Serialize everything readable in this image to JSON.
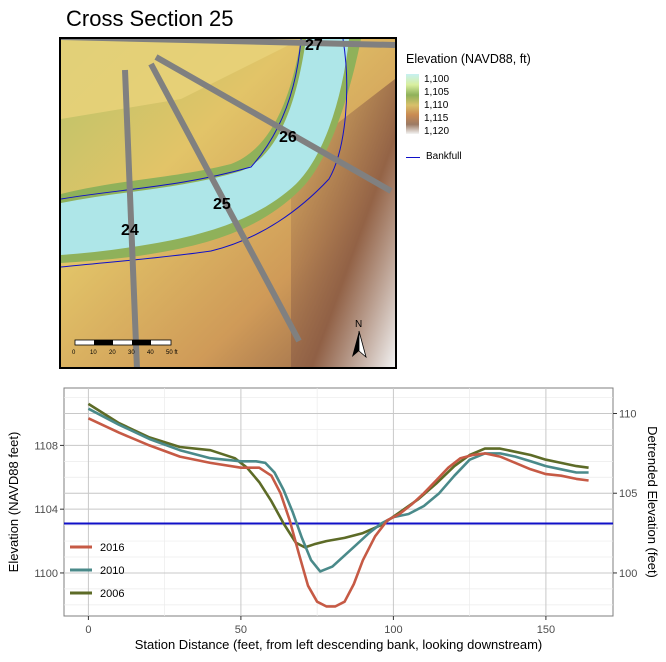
{
  "map": {
    "title": "Cross Section 25",
    "section_labels": [
      "24",
      "25",
      "26",
      "27"
    ],
    "legend_title": "Elevation (NAVD88, ft)",
    "legend_ticks": [
      "1,100",
      "1,105",
      "1,110",
      "1,115",
      "1,120"
    ],
    "bankfull_label": "Bankfull",
    "scale_ticks": [
      "0",
      "10",
      "20",
      "30",
      "40",
      "50 ft"
    ],
    "north_label": "N",
    "colors": {
      "bankfull_line": "#1010c8",
      "section_line": "#808080"
    }
  },
  "chart_data": {
    "type": "line",
    "xlabel": "Station Distance (feet, from left descending bank, looking downstream)",
    "ylabel": "Elevation (NAVD88 feet)",
    "y2label": "Detrended Elevation (feet)",
    "xlim": [
      -8,
      172
    ],
    "ylim": [
      1097.3,
      1111.6
    ],
    "x_ticks": [
      0,
      50,
      100,
      150
    ],
    "y_ticks": [
      1100,
      1104,
      1108
    ],
    "y2_ticks": [
      100,
      105,
      110
    ],
    "y2_offset": 1000,
    "grid": true,
    "legend_position": "bottom-left",
    "bankfull_elevation": 1103.1,
    "series": [
      {
        "name": "2016",
        "color": "#c65a45",
        "x": [
          0,
          10,
          20,
          30,
          40,
          50,
          56,
          60,
          63,
          66,
          69,
          72,
          75,
          78,
          81,
          84,
          87,
          90,
          94,
          98,
          102,
          106,
          110,
          114,
          118,
          122,
          126,
          130,
          135,
          140,
          145,
          150,
          155,
          160,
          164
        ],
        "y": [
          1109.7,
          1108.8,
          1108.0,
          1107.3,
          1106.9,
          1106.6,
          1106.6,
          1106.1,
          1105.0,
          1103.3,
          1101.2,
          1099.2,
          1098.2,
          1097.9,
          1097.9,
          1098.2,
          1099.3,
          1100.8,
          1102.3,
          1103.3,
          1103.7,
          1104.3,
          1105.0,
          1105.8,
          1106.6,
          1107.2,
          1107.4,
          1107.5,
          1107.3,
          1106.9,
          1106.5,
          1106.2,
          1106.1,
          1105.9,
          1105.8
        ]
      },
      {
        "name": "2010",
        "color": "#4a8a8a",
        "x": [
          0,
          10,
          20,
          30,
          40,
          50,
          55,
          58,
          61,
          64,
          67,
          70,
          73,
          76,
          80,
          84,
          88,
          92,
          96,
          100,
          105,
          110,
          115,
          120,
          125,
          130,
          135,
          140,
          145,
          150,
          155,
          160,
          164
        ],
        "y": [
          1110.3,
          1109.3,
          1108.4,
          1107.7,
          1107.2,
          1107.0,
          1107.0,
          1106.9,
          1106.3,
          1105.2,
          1103.8,
          1102.2,
          1100.8,
          1100.1,
          1100.4,
          1101.1,
          1101.8,
          1102.5,
          1103.1,
          1103.5,
          1103.7,
          1104.2,
          1105.0,
          1106.1,
          1107.1,
          1107.5,
          1107.5,
          1107.3,
          1107.0,
          1106.7,
          1106.5,
          1106.3,
          1106.3
        ]
      },
      {
        "name": "2006",
        "color": "#5d6b27",
        "x": [
          0,
          10,
          20,
          30,
          40,
          48,
          52,
          56,
          60,
          64,
          68,
          71,
          74,
          78,
          84,
          90,
          96,
          102,
          108,
          114,
          120,
          125,
          130,
          135,
          140,
          145,
          150,
          155,
          160,
          164
        ],
        "y": [
          1110.6,
          1109.4,
          1108.5,
          1107.9,
          1107.7,
          1107.2,
          1106.6,
          1105.7,
          1104.5,
          1103.1,
          1101.9,
          1101.6,
          1101.8,
          1102.0,
          1102.2,
          1102.5,
          1103.0,
          1103.8,
          1104.6,
          1105.6,
          1106.7,
          1107.4,
          1107.8,
          1107.8,
          1107.6,
          1107.4,
          1107.1,
          1106.9,
          1106.7,
          1106.6
        ]
      }
    ]
  }
}
